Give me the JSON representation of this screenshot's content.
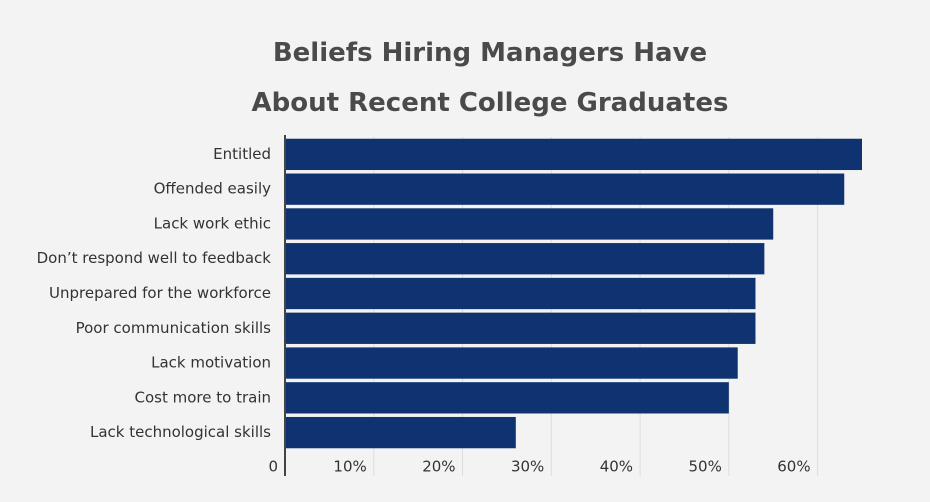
{
  "chart_data": {
    "type": "hbar",
    "title": "Beliefs Hiring Managers Have About Recent College Graduates",
    "categories": [
      "Entitled",
      "Offended easily",
      "Lack work ethic",
      "Don’t respond well to feedback",
      "Unprepared for the workforce",
      "Poor communication skills",
      "Lack motivation",
      "Cost more to train",
      "Lack technological skills"
    ],
    "values": [
      65,
      63,
      55,
      54,
      53,
      53,
      51,
      50,
      26
    ],
    "color": "#0e3370",
    "xlim": [
      0,
      65
    ],
    "xticks": [
      0,
      {
        "value": 10,
        "label": "10%"
      },
      {
        "value": 20,
        "label": "20%"
      },
      {
        "value": 30,
        "label": "30%"
      },
      {
        "value": 40,
        "label": "40%"
      },
      {
        "value": 50,
        "label": "50%"
      },
      {
        "value": 60,
        "label": "60%"
      }
    ],
    "grid": true
  }
}
